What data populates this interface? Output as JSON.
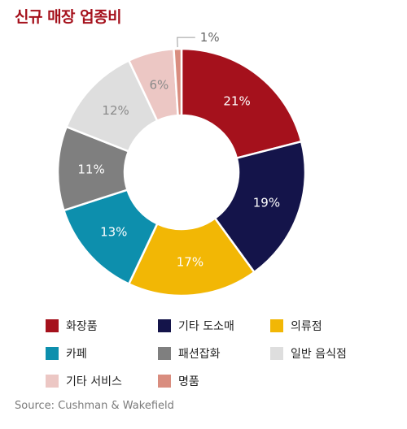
{
  "chart_data": {
    "type": "pie",
    "title": "신규 매장 업종비",
    "categories": [
      "화장품",
      "기타 도소매",
      "의류점",
      "카페",
      "패션잡화",
      "일반 음식점",
      "기타 서비스",
      "명품"
    ],
    "values": [
      21,
      19,
      17,
      13,
      11,
      12,
      6,
      1
    ],
    "value_labels": [
      "21%",
      "19%",
      "17%",
      "13%",
      "11%",
      "12%",
      "6%",
      "1%"
    ],
    "colors": [
      "#a5111c",
      "#14144a",
      "#f2b705",
      "#0d8fad",
      "#7f7f7f",
      "#dedede",
      "#ecc7c4",
      "#d98d7f"
    ],
    "label_colors": [
      "#ffffff",
      "#ffffff",
      "#ffffff",
      "#ffffff",
      "#ffffff",
      "#8a8a8a",
      "#8a8a8a",
      "#666666"
    ],
    "donut": true,
    "legend_position": "bottom",
    "source": "Source: Cushman & Wakefield"
  }
}
